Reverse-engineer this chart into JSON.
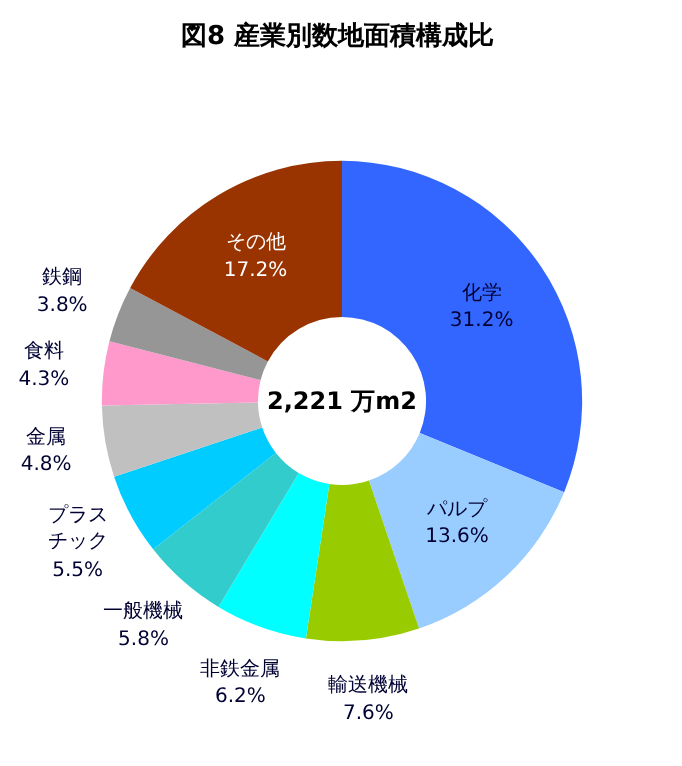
{
  "chart_data": {
    "type": "donut",
    "title": "図8  産業別数地面積構成比",
    "categories": [
      "化学",
      "パルプ",
      "輸送機械",
      "非鉄金属",
      "一般機械",
      "プラスチック",
      "金属",
      "食料",
      "鉄鋼",
      "その他"
    ],
    "values": [
      31.2,
      13.6,
      7.6,
      6.2,
      5.8,
      5.5,
      4.8,
      4.3,
      3.8,
      17.2
    ],
    "colors": [
      "#3366ff",
      "#99ccff",
      "#99cc00",
      "#00ffff",
      "#33cccc",
      "#00ccff",
      "#c0c0c0",
      "#ff99cc",
      "#969696",
      "#993300"
    ],
    "value_labels": [
      "31.2%",
      "13.6%",
      "7.6%",
      "6.2%",
      "5.8%",
      "5.5%",
      "4.8%",
      "4.3%",
      "3.8%",
      "17.2%"
    ],
    "annotations": [
      "2,221 万m2"
    ]
  }
}
